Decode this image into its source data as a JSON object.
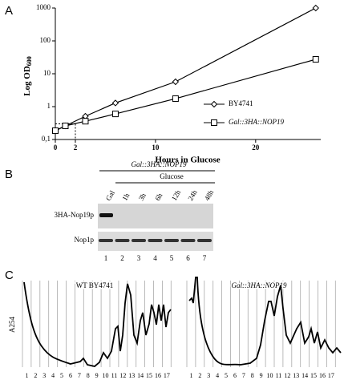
{
  "chart_data": {
    "type": "line",
    "panel": "A",
    "x_label": "Hours in Glucose",
    "y_label": "Log OD",
    "y_label_sub": "600",
    "x": [
      0,
      1,
      3,
      6,
      12,
      26
    ],
    "series": [
      {
        "name": "BY4741",
        "color": "#000000",
        "marker": "diamond",
        "values": [
          0.185,
          0.26,
          0.51,
          1.29,
          5.7,
          1000
        ]
      },
      {
        "name": "Gal::3HA::NOP19",
        "color": "#000000",
        "marker": "square",
        "values": [
          0.185,
          0.26,
          0.36,
          0.6,
          1.75,
          27.5
        ]
      }
    ],
    "xlim": [
      0,
      26.5
    ],
    "xticks": [
      0,
      2,
      10,
      20
    ],
    "ylim": [
      0.1,
      1000
    ],
    "yticks": [
      {
        "value": 0.1,
        "label": "0,1"
      },
      1,
      10,
      100,
      1000
    ],
    "log_y": true,
    "grid": false,
    "legend": "right",
    "reference_lines": {
      "x": 2,
      "y": 0.3
    }
  },
  "panel_b": {
    "label": "B",
    "strain": "Gal::3HA::NOP19",
    "condition": "Glucose",
    "lanes": [
      {
        "label": "Gal",
        "number": "1"
      },
      {
        "label": "1h",
        "number": "2"
      },
      {
        "label": "3h",
        "number": "3"
      },
      {
        "label": "6h",
        "number": "4"
      },
      {
        "label": "12h",
        "number": "5"
      },
      {
        "label": "24h",
        "number": "6"
      },
      {
        "label": "48h",
        "number": "7"
      }
    ],
    "rows": [
      "3HA-Nop19p",
      "Nop1p"
    ]
  },
  "panel_c": {
    "label": "C",
    "y_label": "A254",
    "profiles": [
      {
        "title": "WT BY4741",
        "fractions": [
          "1",
          "2",
          "3",
          "4",
          "5",
          "6",
          "7",
          "8",
          "9",
          "10",
          "11",
          "12",
          "13",
          "14",
          "15",
          "16",
          "17"
        ]
      },
      {
        "title": "Gal::3HA::NOP19",
        "fractions": [
          "1",
          "2",
          "3",
          "4",
          "5",
          "6",
          "7",
          "8",
          "9",
          "10",
          "11",
          "12",
          "13",
          "14",
          "15",
          "16",
          "17"
        ]
      }
    ]
  }
}
